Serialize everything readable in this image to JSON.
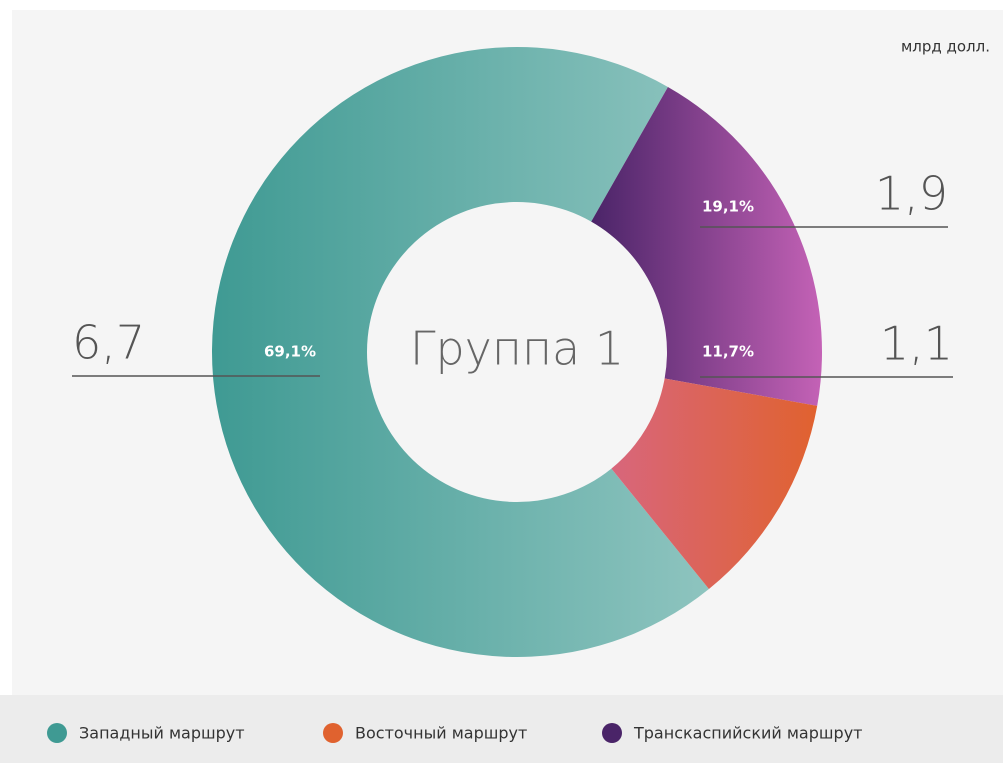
{
  "chart_data": {
    "type": "pie",
    "center_label": "Группа 1",
    "unit": "млрд долл.",
    "categories": [
      "Западный маршрут",
      "Восточный маршрут",
      "Транскаспийский маршрут"
    ],
    "values": [
      6.7,
      1.1,
      1.9
    ],
    "value_labels": [
      "6,7",
      "1,1",
      "1,9"
    ],
    "shares": [
      69.1,
      11.7,
      19.1
    ],
    "share_labels": [
      "69,1%",
      "11,7%",
      "19,1%"
    ],
    "colors": [
      "#3f9a93",
      "#e0622f",
      "#4a2468"
    ]
  }
}
